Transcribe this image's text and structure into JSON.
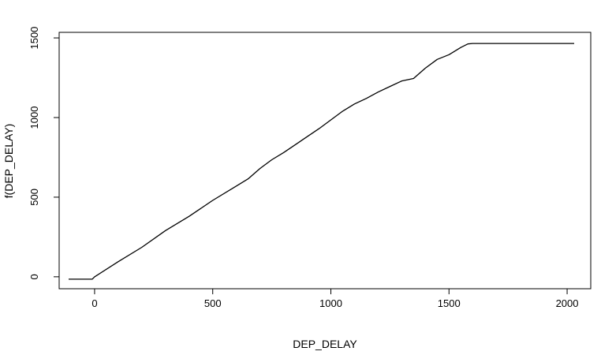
{
  "chart_data": {
    "type": "line",
    "title": "",
    "xlabel": "DEP_DELAY",
    "ylabel": "f(DEP_DELAY)",
    "xlim": [
      -150,
      2100
    ],
    "ylim": [
      -75,
      1535
    ],
    "x_ticks": [
      0,
      500,
      1000,
      1500,
      2000
    ],
    "y_ticks": [
      0,
      500,
      1000,
      1500
    ],
    "grid": false,
    "series": [
      {
        "color": "#000000",
        "x": [
          -110,
          -10,
          0,
          100,
          200,
          300,
          400,
          500,
          600,
          650,
          700,
          750,
          800,
          850,
          900,
          950,
          1000,
          1050,
          1100,
          1150,
          1200,
          1250,
          1300,
          1350,
          1400,
          1450,
          1500,
          1550,
          1580,
          1600,
          2030
        ],
        "y": [
          -15,
          -15,
          0,
          95,
          185,
          290,
          380,
          480,
          570,
          615,
          680,
          735,
          780,
          830,
          880,
          930,
          985,
          1040,
          1085,
          1120,
          1160,
          1195,
          1230,
          1245,
          1310,
          1365,
          1395,
          1440,
          1462,
          1465,
          1465
        ]
      }
    ]
  }
}
